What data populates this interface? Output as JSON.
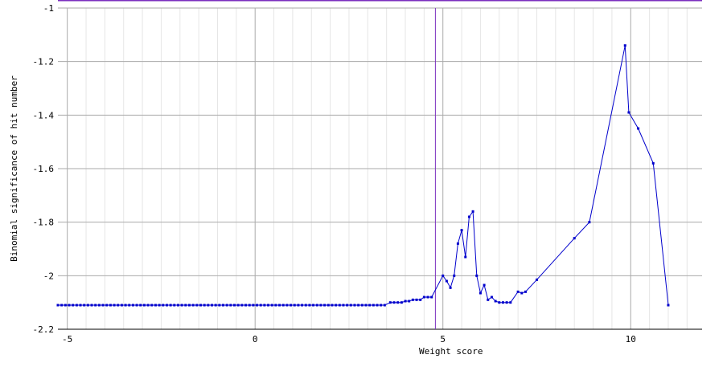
{
  "chart_data": {
    "type": "line",
    "title": "",
    "xlabel": "Weight score",
    "ylabel": "Binomial significance of hit number",
    "xlim": [
      -5.25,
      11.9
    ],
    "ylim": [
      -2.2,
      -1.0
    ],
    "xticks": [
      -5,
      0,
      5,
      10
    ],
    "xtick_labels": [
      "-5",
      "0",
      "5",
      "10"
    ],
    "yticks": [
      -1.0,
      -1.2,
      -1.4,
      -1.6,
      -1.8,
      -2.0,
      -2.2
    ],
    "ytick_labels": [
      "-1",
      "-1.2",
      "-1.4",
      "-1.6",
      "-1.8",
      "-2",
      "-2.2"
    ],
    "grid": true,
    "vline_x": 4.8,
    "colors": {
      "line": "#0000cc",
      "marker": "#0000cc",
      "vline": "#7b2fbf",
      "top_line": "#7b2fbf",
      "grid_major": "#aaaaaa",
      "grid_minor": "#e6e6e6"
    },
    "series": [
      {
        "name": "",
        "flat_segment": {
          "x_start": -5.25,
          "x_end": 3.5,
          "x_step": 0.1,
          "y": -2.11
        },
        "points": [
          [
            3.6,
            -2.1
          ],
          [
            3.7,
            -2.1
          ],
          [
            3.8,
            -2.1
          ],
          [
            3.9,
            -2.1
          ],
          [
            4.0,
            -2.095
          ],
          [
            4.1,
            -2.095
          ],
          [
            4.2,
            -2.09
          ],
          [
            4.3,
            -2.09
          ],
          [
            4.4,
            -2.09
          ],
          [
            4.5,
            -2.08
          ],
          [
            4.6,
            -2.08
          ],
          [
            4.7,
            -2.08
          ],
          [
            5.0,
            -2.0
          ],
          [
            5.1,
            -2.02
          ],
          [
            5.2,
            -2.045
          ],
          [
            5.3,
            -2.0
          ],
          [
            5.4,
            -1.88
          ],
          [
            5.5,
            -1.83
          ],
          [
            5.6,
            -1.93
          ],
          [
            5.7,
            -1.78
          ],
          [
            5.8,
            -1.76
          ],
          [
            5.9,
            -2.0
          ],
          [
            6.0,
            -2.065
          ],
          [
            6.1,
            -2.035
          ],
          [
            6.2,
            -2.09
          ],
          [
            6.3,
            -2.08
          ],
          [
            6.4,
            -2.095
          ],
          [
            6.5,
            -2.1
          ],
          [
            6.6,
            -2.1
          ],
          [
            6.7,
            -2.1
          ],
          [
            6.8,
            -2.1
          ],
          [
            7.0,
            -2.06
          ],
          [
            7.1,
            -2.065
          ],
          [
            7.2,
            -2.06
          ],
          [
            7.5,
            -2.015
          ],
          [
            8.5,
            -1.86
          ],
          [
            8.9,
            -1.8
          ],
          [
            9.85,
            -1.14
          ],
          [
            9.95,
            -1.39
          ],
          [
            10.2,
            -1.45
          ],
          [
            10.6,
            -1.58
          ],
          [
            11.0,
            -2.11
          ]
        ]
      }
    ]
  }
}
